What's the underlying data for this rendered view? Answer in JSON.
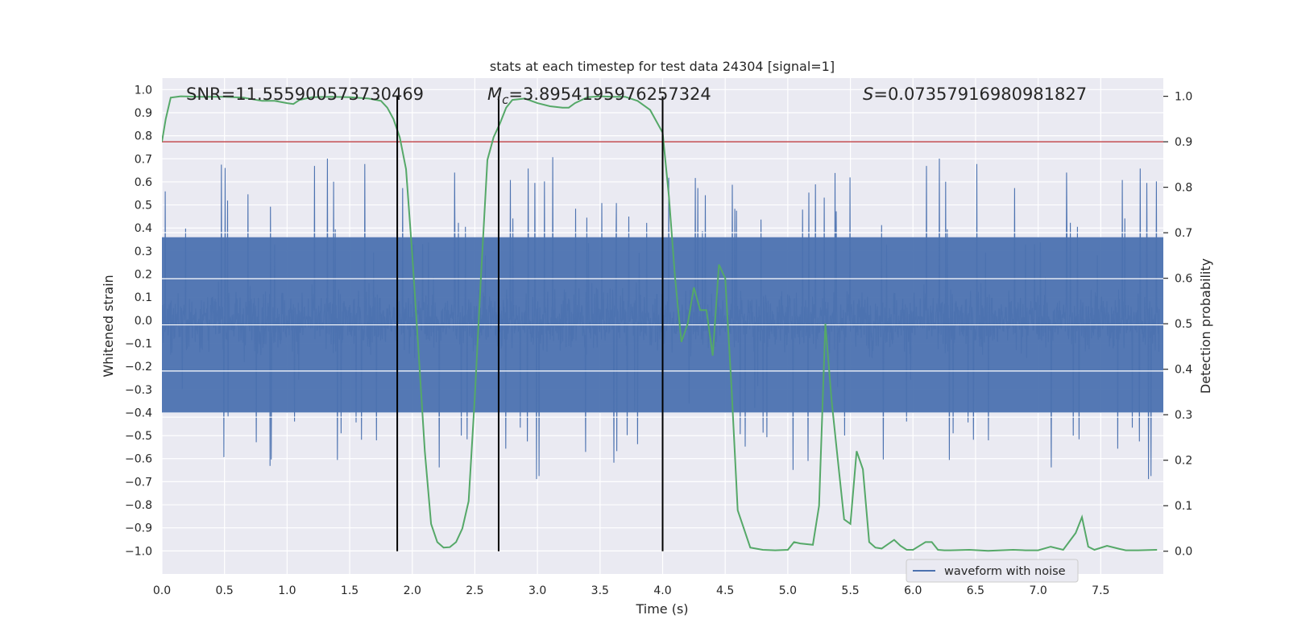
{
  "chart_data": {
    "type": "line",
    "title": "stats at each timestep for test data 24304 [signal=1]",
    "xlabel": "Time (s)",
    "ylabel_left": "Whitened strain",
    "ylabel_right": "Detection probability",
    "xlim": [
      0.0,
      8.0
    ],
    "ylim_left": [
      -1.1,
      1.05
    ],
    "ylim_right": [
      -0.05,
      1.04
    ],
    "x_ticks": [
      "0.0",
      "0.5",
      "1.0",
      "1.5",
      "2.0",
      "2.5",
      "3.0",
      "3.5",
      "4.0",
      "4.5",
      "5.0",
      "5.5",
      "6.0",
      "6.5",
      "7.0",
      "7.5"
    ],
    "y_left_ticks": [
      "1.0",
      "0.9",
      "0.8",
      "0.7",
      "0.6",
      "0.5",
      "0.4",
      "0.3",
      "0.2",
      "0.1",
      "0.0",
      "−0.1",
      "−0.2",
      "−0.3",
      "−0.4",
      "−0.5",
      "−0.6",
      "−0.7",
      "−0.8",
      "−0.9",
      "−1.0"
    ],
    "y_right_ticks": [
      "1.0",
      "0.9",
      "0.8",
      "0.7",
      "0.6",
      "0.5",
      "0.4",
      "0.3",
      "0.2",
      "0.1",
      "0.0"
    ],
    "grid": true,
    "legend": {
      "placement": "lower-right",
      "entries": [
        "waveform with noise"
      ]
    },
    "annotations": {
      "snr": "SNR=11.555900573730469",
      "mc_symbol": "M",
      "mc_sub": "c",
      "mc_value": "=3.8954195976257324",
      "s_symbol": "S",
      "s_value": "=0.07357916980981827"
    },
    "threshold": {
      "y_right": 0.9,
      "color": "#c44e52"
    },
    "vertical_lines_x": [
      1.88,
      2.69,
      4.0
    ],
    "colors": {
      "waveform": "#4c72b0",
      "probability": "#55a868",
      "threshold": "#c44e52",
      "vlines": "#000000",
      "panel_bg": "#eaeaf2"
    },
    "series": [
      {
        "name": "waveform with noise",
        "axis": "left",
        "kind": "noise",
        "note_values": "dense noisy strain series in [-1, 1]",
        "x_range": [
          0.0,
          8.0
        ]
      },
      {
        "name": "",
        "axis": "right",
        "x": [
          0.0,
          0.03,
          0.07,
          0.15,
          0.3,
          0.5,
          0.65,
          0.8,
          0.9,
          1.0,
          1.05,
          1.1,
          1.2,
          1.35,
          1.5,
          1.65,
          1.75,
          1.8,
          1.85,
          1.9,
          1.95,
          2.0,
          2.05,
          2.1,
          2.15,
          2.2,
          2.25,
          2.3,
          2.35,
          2.4,
          2.45,
          2.5,
          2.55,
          2.6,
          2.65,
          2.7,
          2.75,
          2.8,
          2.9,
          3.0,
          3.1,
          3.2,
          3.25,
          3.3,
          3.4,
          3.5,
          3.6,
          3.7,
          3.8,
          3.9,
          4.0,
          4.05,
          4.1,
          4.15,
          4.2,
          4.25,
          4.3,
          4.35,
          4.4,
          4.45,
          4.5,
          4.55,
          4.6,
          4.7,
          4.8,
          4.9,
          5.0,
          5.05,
          5.1,
          5.2,
          5.25,
          5.3,
          5.35,
          5.4,
          5.45,
          5.5,
          5.55,
          5.6,
          5.65,
          5.7,
          5.75,
          5.85,
          5.9,
          5.95,
          6.0,
          6.1,
          6.15,
          6.2,
          6.25,
          6.3,
          6.45,
          6.6,
          6.8,
          6.9,
          7.0,
          7.1,
          7.2,
          7.3,
          7.35,
          7.4,
          7.45,
          7.55,
          7.65,
          7.7,
          7.8,
          7.95
        ],
        "y": [
          0.9,
          0.95,
          0.997,
          1.0,
          0.999,
          0.999,
          0.997,
          0.99,
          0.99,
          0.985,
          0.983,
          0.992,
          0.998,
          0.999,
          0.998,
          0.995,
          0.99,
          0.975,
          0.95,
          0.91,
          0.84,
          0.65,
          0.44,
          0.22,
          0.06,
          0.02,
          0.008,
          0.009,
          0.02,
          0.05,
          0.11,
          0.34,
          0.61,
          0.86,
          0.91,
          0.94,
          0.975,
          0.992,
          0.995,
          0.985,
          0.978,
          0.975,
          0.975,
          0.985,
          0.998,
          1.0,
          0.999,
          0.999,
          0.99,
          0.97,
          0.92,
          0.78,
          0.6,
          0.46,
          0.5,
          0.58,
          0.53,
          0.53,
          0.43,
          0.63,
          0.6,
          0.36,
          0.09,
          0.008,
          0.003,
          0.002,
          0.003,
          0.02,
          0.017,
          0.014,
          0.1,
          0.5,
          0.33,
          0.2,
          0.07,
          0.06,
          0.22,
          0.18,
          0.02,
          0.008,
          0.006,
          0.025,
          0.012,
          0.003,
          0.003,
          0.02,
          0.02,
          0.003,
          0.002,
          0.002,
          0.003,
          0.001,
          0.003,
          0.002,
          0.002,
          0.01,
          0.003,
          0.04,
          0.075,
          0.01,
          0.003,
          0.012,
          0.005,
          0.002,
          0.002,
          0.003
        ]
      }
    ]
  }
}
